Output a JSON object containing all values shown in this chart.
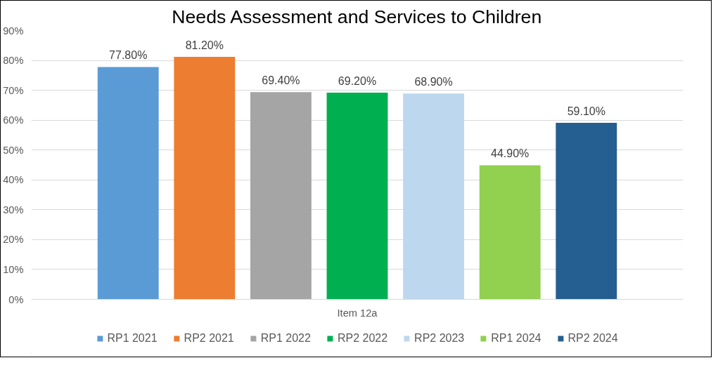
{
  "chart_data": {
    "type": "bar",
    "title": "Needs Assessment and Services to Children",
    "categories": [
      "Item 12a"
    ],
    "series": [
      {
        "name": "RP1 2021",
        "color": "#5b9bd5",
        "values": [
          77.8
        ],
        "value_labels": [
          "77.80%"
        ]
      },
      {
        "name": "RP2 2021",
        "color": "#ed7d31",
        "values": [
          81.2
        ],
        "value_labels": [
          "81.20%"
        ]
      },
      {
        "name": "RP1 2022",
        "color": "#a5a5a5",
        "values": [
          69.4
        ],
        "value_labels": [
          "69.40%"
        ]
      },
      {
        "name": "RP2 2022",
        "color": "#00b050",
        "values": [
          69.2
        ],
        "value_labels": [
          "69.20%"
        ]
      },
      {
        "name": "RP2 2023",
        "color": "#bdd7ee",
        "values": [
          68.9
        ],
        "value_labels": [
          "68.90%"
        ]
      },
      {
        "name": "RP1 2024",
        "color": "#92d050",
        "values": [
          44.9
        ],
        "value_labels": [
          "44.90%"
        ]
      },
      {
        "name": "RP2 2024",
        "color": "#255e91",
        "values": [
          59.1
        ],
        "value_labels": [
          "59.10%"
        ]
      }
    ],
    "ylim": [
      0,
      90
    ],
    "yticks": [
      {
        "value": 0,
        "label": "0%"
      },
      {
        "value": 10,
        "label": "10%"
      },
      {
        "value": 20,
        "label": "20%"
      },
      {
        "value": 30,
        "label": "30%"
      },
      {
        "value": 40,
        "label": "40%"
      },
      {
        "value": 50,
        "label": "50%"
      },
      {
        "value": 60,
        "label": "60%"
      },
      {
        "value": 70,
        "label": "70%"
      },
      {
        "value": 80,
        "label": "80%"
      },
      {
        "value": 90,
        "label": "90%"
      }
    ],
    "grid": "y",
    "legend": "bottom"
  }
}
